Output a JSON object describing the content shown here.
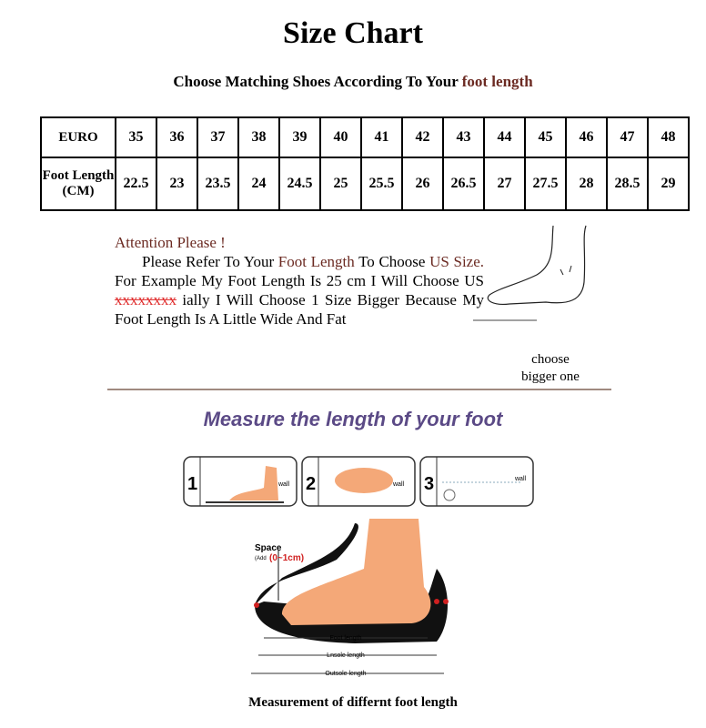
{
  "title": "Size Chart",
  "subtitle": {
    "prefix": "Choose Matching Shoes According To Your ",
    "highlight": "foot length"
  },
  "table": {
    "row1_header": "EURO",
    "row2_header": "Foot Length (CM)",
    "euro": [
      "35",
      "36",
      "37",
      "38",
      "39",
      "40",
      "41",
      "42",
      "43",
      "44",
      "45",
      "46",
      "47",
      "48"
    ],
    "foot_length": [
      "22.5",
      "23",
      "23.5",
      "24",
      "24.5",
      "25",
      "25.5",
      "26",
      "26.5",
      "27",
      "27.5",
      "28",
      "28.5",
      "29"
    ]
  },
  "attention": {
    "heading": "Attention Please !",
    "t1": "Please Refer To Your ",
    "t2": "Foot Length",
    "t3": " To Choose ",
    "t4": "US Size.",
    "t5": " For Example My Foot Length Is 25 cm I Will Choose US ",
    "t6": "xxxxxxxx",
    "t7": " ially I Will Choose 1 Size Bigger Because My Foot Length Is A Little Wide And Fat"
  },
  "choose_note": {
    "line1": "choose",
    "line2": "bigger one"
  },
  "measure_heading": "Measure the length of your foot",
  "steps": [
    {
      "num": "1",
      "label": "wall"
    },
    {
      "num": "2",
      "label": "wall"
    },
    {
      "num": "3",
      "label": "wall"
    }
  ],
  "diagram": {
    "space": "Space",
    "add": "(Add",
    "range": "(0~1cm)",
    "foot_length": "Foot length",
    "insole_length": "Lnsole length",
    "outsole_length": "Outsole length"
  },
  "caption": "Measurement of differnt foot length",
  "colors": {
    "brown": "#6b2a22",
    "purple": "#5b4a86",
    "skin": "#f4a878",
    "red": "#e03030"
  }
}
